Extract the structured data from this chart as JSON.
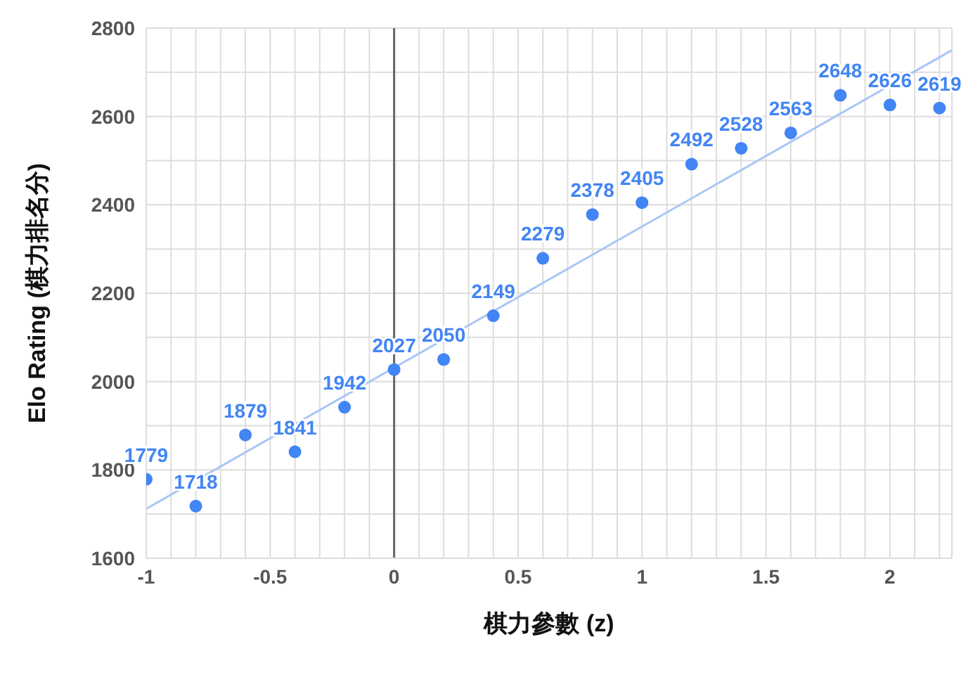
{
  "chart_data": {
    "type": "scatter",
    "xlabel": "棋力參數 (z)",
    "ylabel": "Elo Rating (棋力排名分)",
    "x": [
      -1,
      -0.8,
      -0.6,
      -0.4,
      -0.2,
      0,
      0.2,
      0.4,
      0.6,
      0.8,
      1,
      1.2,
      1.4,
      1.6,
      1.8,
      2,
      2.2
    ],
    "series": [
      {
        "color": "#4285f4",
        "values": [
          1779,
          1718,
          1879,
          1841,
          1942,
          2027,
          2050,
          2149,
          2279,
          2378,
          2405,
          2492,
          2528,
          2563,
          2648,
          2626,
          2619
        ],
        "value_labels": [
          "1779",
          "1718",
          "1879",
          "1841",
          "1942",
          "2027",
          "2050",
          "2149",
          "2279",
          "2378",
          "2405",
          "2492",
          "2528",
          "2563",
          "2648",
          "2626",
          "2619"
        ]
      },
      {
        "type": "line",
        "color": "#a9c6f5",
        "x": [
          -1,
          2.25
        ],
        "values": [
          1712,
          2750
        ],
        "marker": "none"
      }
    ],
    "marker": "circle",
    "grid": true,
    "xlim": [
      -1,
      2.25
    ],
    "xticks": [
      -1,
      {
        "value": -0.9,
        "label": null
      },
      {
        "value": -0.8,
        "label": null
      },
      {
        "value": -0.7,
        "label": null
      },
      {
        "value": -0.6,
        "label": null
      },
      -0.5,
      {
        "value": -0.4,
        "label": null
      },
      {
        "value": -0.3,
        "label": null
      },
      {
        "value": -0.2,
        "label": null
      },
      {
        "value": -0.1,
        "label": null
      },
      0,
      {
        "value": 0.1,
        "label": null
      },
      {
        "value": 0.2,
        "label": null
      },
      {
        "value": 0.3,
        "label": null
      },
      {
        "value": 0.4,
        "label": null
      },
      0.5,
      {
        "value": 0.6,
        "label": null
      },
      {
        "value": 0.7,
        "label": null
      },
      {
        "value": 0.8,
        "label": null
      },
      {
        "value": 0.9,
        "label": null
      },
      1,
      {
        "value": 1.1,
        "label": null
      },
      {
        "value": 1.2,
        "label": null
      },
      {
        "value": 1.3,
        "label": null
      },
      {
        "value": 1.4,
        "label": null
      },
      1.5,
      {
        "value": 1.6,
        "label": null
      },
      {
        "value": 1.7,
        "label": null
      },
      {
        "value": 1.8,
        "label": null
      },
      {
        "value": 1.9,
        "label": null
      },
      2,
      {
        "value": 2.1,
        "label": null
      },
      {
        "value": 2.2,
        "label": null
      }
    ],
    "ylim": [
      1600,
      2800
    ],
    "yticks": [
      1600,
      {
        "value": 1700,
        "label": null
      },
      1800,
      {
        "value": 1900,
        "label": null
      },
      2000,
      {
        "value": 2100,
        "label": null
      },
      2200,
      {
        "value": 2300,
        "label": null
      },
      2400,
      {
        "value": 2500,
        "label": null
      },
      2600,
      {
        "value": 2700,
        "label": null
      },
      2800
    ],
    "ref_lines": [
      {
        "axis": "x",
        "value": 0,
        "color": "#666666"
      }
    ]
  }
}
